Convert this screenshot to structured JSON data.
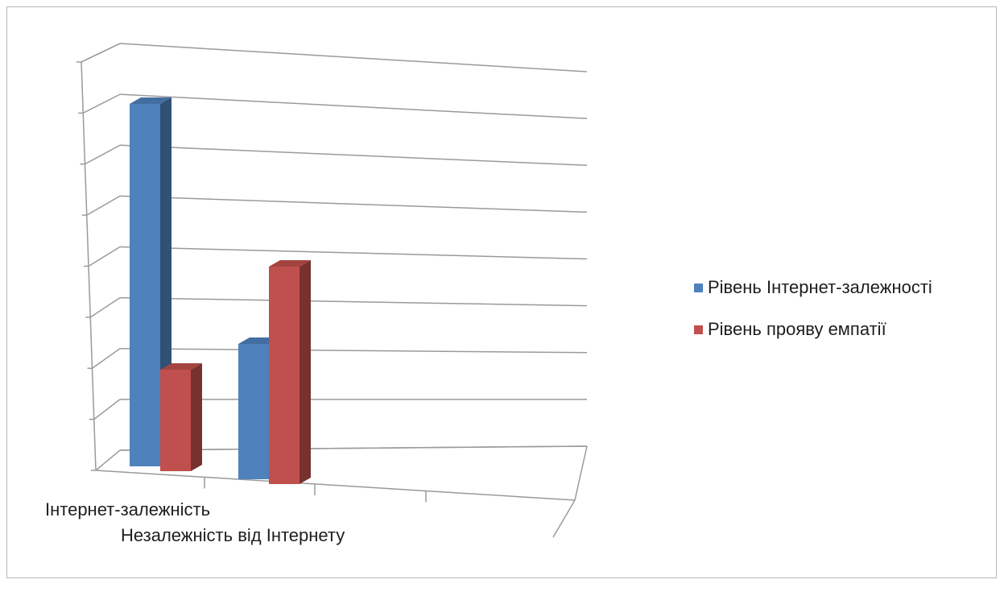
{
  "chart_data": {
    "type": "bar",
    "title": "",
    "xlabel": "",
    "ylabel": "",
    "categories": [
      "Інтернет-залежність",
      "Незалежність від Інтернету"
    ],
    "series": [
      {
        "name": "Рівень Інтернет-залежності",
        "values": [
          75,
          28
        ],
        "color": "#4F81BD"
      },
      {
        "name": "Рівень прояву емпатії",
        "values": [
          21,
          45
        ],
        "color": "#C0504D"
      }
    ],
    "ylim": [
      0,
      80
    ],
    "grid": true,
    "legend": "right",
    "three_d": true
  }
}
